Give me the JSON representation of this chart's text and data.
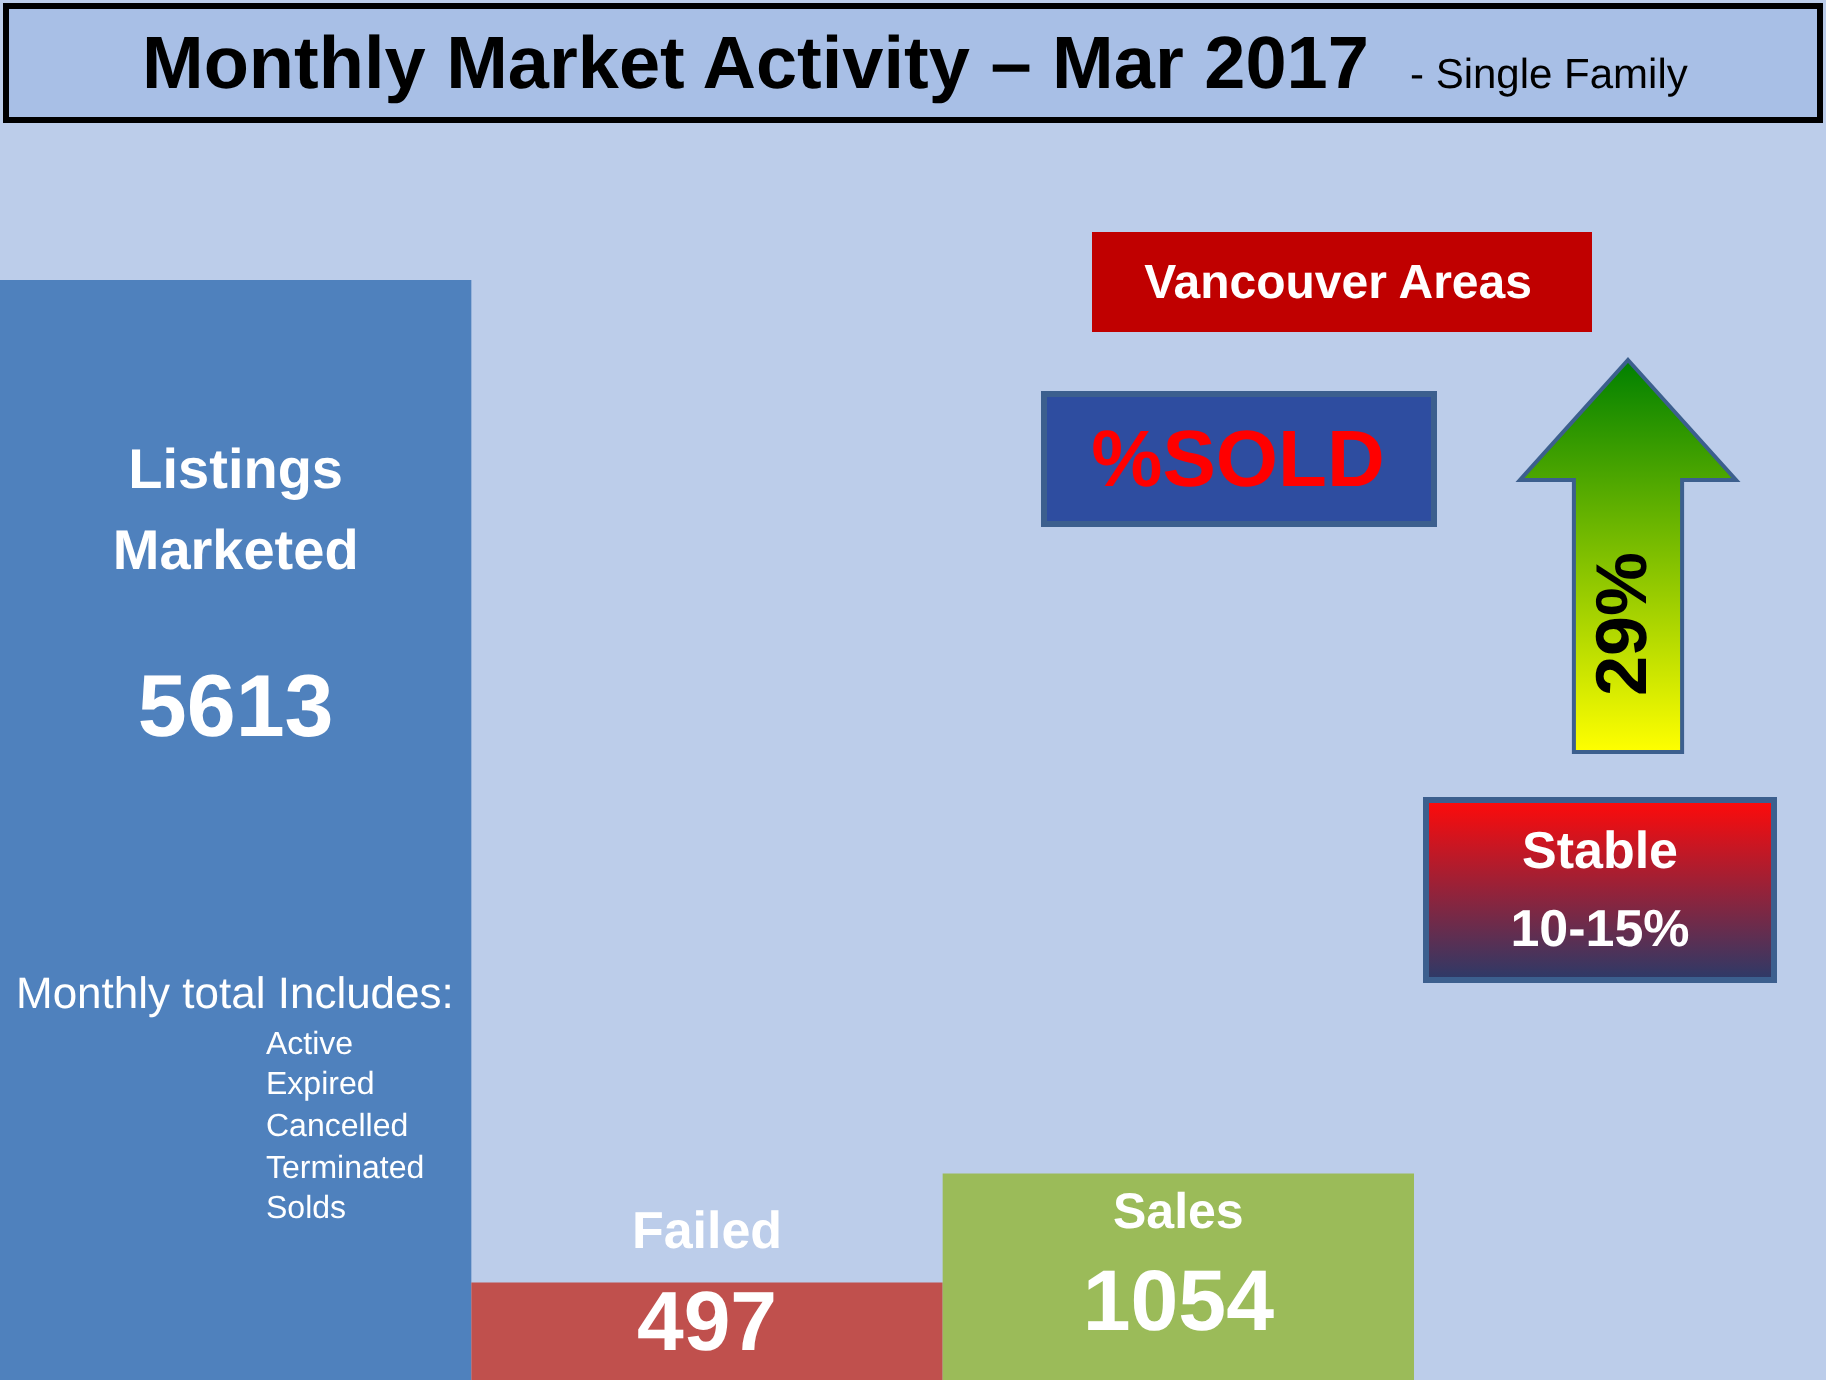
{
  "chart_data": {
    "type": "bar",
    "title": "Monthly Market Activity – Mar 2017",
    "subtitle": "- Single Family",
    "categories": [
      "Listings Marketed",
      "Failed",
      "Sales"
    ],
    "values": [
      5613,
      497,
      1054
    ],
    "colors": [
      "#4f81bd",
      "#c0504d",
      "#9bbb59"
    ],
    "data_labels": true,
    "tick_labels": false,
    "annotations": [
      "Vancouver Areas",
      "%SOLD",
      "29%",
      "Stable",
      "10-15%",
      "Monthly total Includes:",
      "Active",
      "Expired",
      "Cancelled",
      "Terminated",
      "Solds"
    ]
  }
}
